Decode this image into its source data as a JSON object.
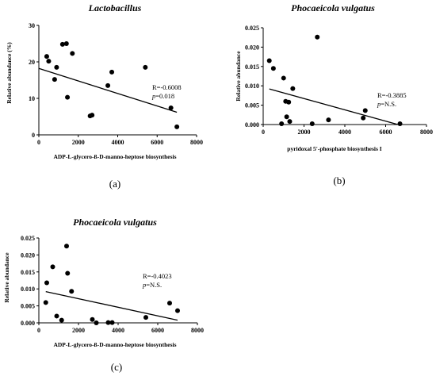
{
  "chart_data": [
    {
      "type": "scatter",
      "panel_label": "(a)",
      "title": "Lactobacillus",
      "xlabel": "ADP-L-glycero-ß-D-manno-heptose biosynthesis",
      "ylabel": "Relative abundance (%)",
      "xlim": [
        0,
        8000
      ],
      "ylim": [
        0,
        30
      ],
      "xticks": [
        "0",
        "2000",
        "4000",
        "6000",
        "8000"
      ],
      "yticks": [
        "0",
        "10",
        "20",
        "30"
      ],
      "annotation": {
        "r": "R=-0.6008",
        "p_label": "p",
        "p_value": "=0.018"
      },
      "points": [
        [
          400,
          21.5
        ],
        [
          500,
          20.2
        ],
        [
          800,
          15.2
        ],
        [
          900,
          18.5
        ],
        [
          1200,
          24.8
        ],
        [
          1400,
          25.0
        ],
        [
          1450,
          10.3
        ],
        [
          1700,
          22.3
        ],
        [
          2600,
          5.2
        ],
        [
          2700,
          5.4
        ],
        [
          3500,
          13.5
        ],
        [
          3700,
          17.2
        ],
        [
          5400,
          18.5
        ],
        [
          6700,
          7.4
        ],
        [
          7000,
          2.2
        ]
      ],
      "trend": [
        [
          0,
          18.2
        ],
        [
          7000,
          6.2
        ]
      ]
    },
    {
      "type": "scatter",
      "panel_label": "(b)",
      "title": "Phocaeicola vulgatus",
      "xlabel": "pyridoxal 5'-phosphate biosynthesis I",
      "ylabel": "Relative abundance",
      "xlim": [
        0,
        8000
      ],
      "ylim": [
        0,
        0.025
      ],
      "xticks": [
        "0",
        "2000",
        "4000",
        "6000",
        "8000"
      ],
      "yticks": [
        "0.000",
        "0.005",
        "0.010",
        "0.015",
        "0.020",
        "0.025"
      ],
      "annotation": {
        "r": "R=-0.3885",
        "p_label": "p",
        "p_value": "=N.S."
      },
      "points": [
        [
          300,
          0.0165
        ],
        [
          500,
          0.0145
        ],
        [
          900,
          0.0002
        ],
        [
          1000,
          0.012
        ],
        [
          1100,
          0.006
        ],
        [
          1150,
          0.002
        ],
        [
          1250,
          0.0058
        ],
        [
          1300,
          0.0008
        ],
        [
          1450,
          0.0093
        ],
        [
          2400,
          0.0002
        ],
        [
          2650,
          0.0226
        ],
        [
          3200,
          0.0012
        ],
        [
          4900,
          0.0017
        ],
        [
          5000,
          0.0036
        ],
        [
          6700,
          0.0002
        ]
      ],
      "trend": [
        [
          300,
          0.0092
        ],
        [
          6600,
          0.0
        ]
      ]
    },
    {
      "type": "scatter",
      "panel_label": "(c)",
      "title": "Phocaeicola vulgatus",
      "xlabel": "ADP-L-glycero-ß-D-manno-heptose biosynthesis",
      "ylabel": "Relative abundance",
      "xlim": [
        0,
        8000
      ],
      "ylim": [
        0,
        0.025
      ],
      "xticks": [
        "0",
        "2000",
        "4000",
        "6000",
        "8000"
      ],
      "yticks": [
        "0.000",
        "0.005",
        "0.010",
        "0.015",
        "0.020",
        "0.025"
      ],
      "annotation": {
        "r": "R=-0.4023",
        "p_label": "p",
        "p_value": "=N.S."
      },
      "points": [
        [
          350,
          0.006
        ],
        [
          400,
          0.0118
        ],
        [
          700,
          0.0165
        ],
        [
          900,
          0.002
        ],
        [
          1150,
          0.0008
        ],
        [
          1400,
          0.0226
        ],
        [
          1450,
          0.0146
        ],
        [
          1650,
          0.0093
        ],
        [
          2700,
          0.001
        ],
        [
          2900,
          0.0
        ],
        [
          3500,
          0.0001
        ],
        [
          3700,
          0.0001
        ],
        [
          5400,
          0.0016
        ],
        [
          6600,
          0.0058
        ],
        [
          7000,
          0.0036
        ]
      ],
      "trend": [
        [
          350,
          0.0092
        ],
        [
          7000,
          0.0008
        ]
      ]
    }
  ]
}
